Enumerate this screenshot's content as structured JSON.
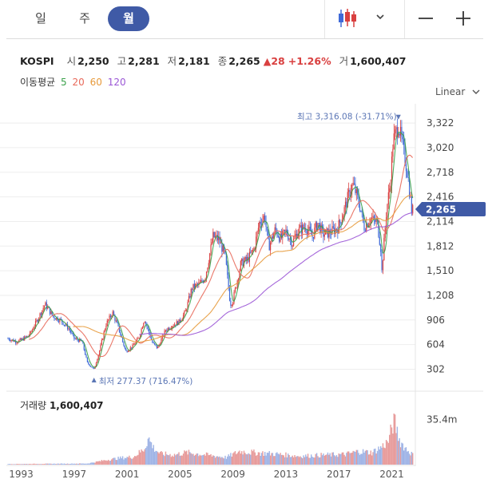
{
  "tabs": [
    {
      "label": "일",
      "active": false
    },
    {
      "label": "주",
      "active": false
    },
    {
      "label": "월",
      "active": true
    }
  ],
  "toolbar": {
    "chart_type_icon": "candlestick-icon",
    "chevron_icon": "chevron-down-icon",
    "zoom_out_icon": "minus-icon",
    "zoom_in_icon": "plus-icon"
  },
  "quote": {
    "symbol": "KOSPI",
    "open_label": "시",
    "open": "2,250",
    "high_label": "고",
    "high": "2,281",
    "low_label": "저",
    "low": "2,181",
    "close_label": "종",
    "close": "2,265",
    "change": "▲28",
    "change_pct": "+1.26%",
    "volume_label": "거",
    "volume": "1,600,407"
  },
  "moving_average": {
    "label": "이동평균",
    "periods": [
      "5",
      "20",
      "60",
      "120"
    ],
    "colors": [
      "#3aa14a",
      "#e8695a",
      "#e79a3b",
      "#9b57d6"
    ]
  },
  "scale": {
    "label": "Linear"
  },
  "volume_panel": {
    "label": "거래량",
    "value": "1,600,407"
  },
  "colors": {
    "up": "#d94040",
    "down": "#3f6ad8",
    "accent": "#3f5aa6",
    "annotation": "#5b76b5"
  },
  "chart_data": {
    "type": "candlestick",
    "interval": "monthly",
    "xlim": [
      1992.0,
      2022.6
    ],
    "ylim": [
      150,
      3460
    ],
    "y_ticks": [
      302,
      604,
      906,
      1208,
      1510,
      1812,
      2114,
      2416,
      2718,
      3020,
      3322
    ],
    "y_tick_labels": [
      "302",
      "604",
      "906",
      "1,208",
      "1,510",
      "1,812",
      "2,114",
      "2,416",
      "2,718",
      "3,020",
      "3,322"
    ],
    "x_tick_years": [
      1993,
      1997,
      2001,
      2005,
      2009,
      2013,
      2017,
      2021
    ],
    "current_price": 2265,
    "current_price_label": "2,265",
    "max_annotation": {
      "label": "최고 3,316.08 (-31.71%)",
      "year": 2021.5,
      "value": 3316.08
    },
    "min_annotation": {
      "label": "최저 277.37 (716.47%)",
      "year": 1998.5,
      "value": 277.37
    },
    "price_path": [
      [
        1992.0,
        680
      ],
      [
        1992.6,
        640
      ],
      [
        1993.0,
        660
      ],
      [
        1993.6,
        720
      ],
      [
        1994.2,
        900
      ],
      [
        1994.8,
        1100
      ],
      [
        1995.4,
        950
      ],
      [
        1996.0,
        900
      ],
      [
        1996.6,
        800
      ],
      [
        1997.0,
        680
      ],
      [
        1997.6,
        640
      ],
      [
        1998.0,
        380
      ],
      [
        1998.5,
        300
      ],
      [
        1998.9,
        520
      ],
      [
        1999.4,
        850
      ],
      [
        1999.9,
        1000
      ],
      [
        2000.4,
        780
      ],
      [
        2000.9,
        520
      ],
      [
        2001.4,
        580
      ],
      [
        2001.9,
        690
      ],
      [
        2002.3,
        920
      ],
      [
        2002.9,
        630
      ],
      [
        2003.3,
        560
      ],
      [
        2003.9,
        780
      ],
      [
        2004.4,
        840
      ],
      [
        2004.9,
        880
      ],
      [
        2005.4,
        1000
      ],
      [
        2005.9,
        1300
      ],
      [
        2006.5,
        1350
      ],
      [
        2006.9,
        1430
      ],
      [
        2007.5,
        1930
      ],
      [
        2007.9,
        1900
      ],
      [
        2008.4,
        1700
      ],
      [
        2008.8,
        1100
      ],
      [
        2009.0,
        1150
      ],
      [
        2009.6,
        1600
      ],
      [
        2010.1,
        1650
      ],
      [
        2010.6,
        1780
      ],
      [
        2011.0,
        2100
      ],
      [
        2011.4,
        2180
      ],
      [
        2011.7,
        1800
      ],
      [
        2012.2,
        2020
      ],
      [
        2012.6,
        1900
      ],
      [
        2013.0,
        1990
      ],
      [
        2013.5,
        1850
      ],
      [
        2013.9,
        2000
      ],
      [
        2014.5,
        2050
      ],
      [
        2015.0,
        1930
      ],
      [
        2015.4,
        2100
      ],
      [
        2015.8,
        1960
      ],
      [
        2016.3,
        1980
      ],
      [
        2016.9,
        2030
      ],
      [
        2017.3,
        2200
      ],
      [
        2017.9,
        2520
      ],
      [
        2018.1,
        2560
      ],
      [
        2018.6,
        2300
      ],
      [
        2018.9,
        2050
      ],
      [
        2019.4,
        2150
      ],
      [
        2019.9,
        2100
      ],
      [
        2020.2,
        1750
      ],
      [
        2020.25,
        1500
      ],
      [
        2020.6,
        2250
      ],
      [
        2020.9,
        2600
      ],
      [
        2021.1,
        3100
      ],
      [
        2021.5,
        3300
      ],
      [
        2021.9,
        2980
      ],
      [
        2022.2,
        2700
      ],
      [
        2022.5,
        2250
      ]
    ],
    "volume_ylim": [
      0,
      40000000
    ],
    "volume_tick_label": "35.4m",
    "volume_tick_value": 35400000,
    "volume_path": [
      [
        1992.0,
        500000
      ],
      [
        1995.0,
        700000
      ],
      [
        1998.0,
        900000
      ],
      [
        1999.5,
        4000000
      ],
      [
        2000.5,
        5500000
      ],
      [
        2001.5,
        6500000
      ],
      [
        2002.3,
        13000000
      ],
      [
        2002.6,
        22000000
      ],
      [
        2003.0,
        14000000
      ],
      [
        2003.5,
        9000000
      ],
      [
        2004.5,
        8000000
      ],
      [
        2005.5,
        10000000
      ],
      [
        2007.0,
        8000000
      ],
      [
        2008.5,
        6000000
      ],
      [
        2009.5,
        11000000
      ],
      [
        2010.5,
        10000000
      ],
      [
        2012.0,
        9000000
      ],
      [
        2014.0,
        7000000
      ],
      [
        2016.0,
        8000000
      ],
      [
        2017.5,
        8500000
      ],
      [
        2018.5,
        11000000
      ],
      [
        2019.5,
        10000000
      ],
      [
        2020.3,
        15000000
      ],
      [
        2020.8,
        20000000
      ],
      [
        2021.0,
        31000000
      ],
      [
        2021.2,
        35400000
      ],
      [
        2021.6,
        20000000
      ],
      [
        2022.0,
        14000000
      ],
      [
        2022.5,
        9000000
      ]
    ]
  }
}
